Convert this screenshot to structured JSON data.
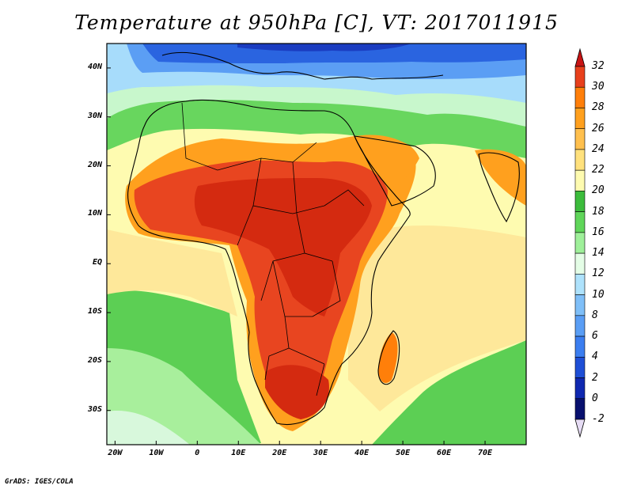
{
  "title": "Temperature at 950hPa [C], VT: 2017011915",
  "credit": "GrADS: IGES/COLA",
  "map": {
    "projection": "latlon",
    "lon_range": [
      -22,
      80
    ],
    "lat_range": [
      -37,
      45
    ],
    "lon_ticks": [
      {
        "lon": -20,
        "label": "20W"
      },
      {
        "lon": -10,
        "label": "10W"
      },
      {
        "lon": 0,
        "label": "0"
      },
      {
        "lon": 10,
        "label": "10E"
      },
      {
        "lon": 20,
        "label": "20E"
      },
      {
        "lon": 30,
        "label": "30E"
      },
      {
        "lon": 40,
        "label": "40E"
      },
      {
        "lon": 50,
        "label": "50E"
      },
      {
        "lon": 60,
        "label": "60E"
      },
      {
        "lon": 70,
        "label": "70E"
      }
    ],
    "lat_ticks": [
      {
        "lat": 40,
        "label": "40N"
      },
      {
        "lat": 30,
        "label": "30N"
      },
      {
        "lat": 20,
        "label": "20N"
      },
      {
        "lat": 10,
        "label": "10N"
      },
      {
        "lat": 0,
        "label": "EQ"
      },
      {
        "lat": -10,
        "label": "10S"
      },
      {
        "lat": -20,
        "label": "20S"
      },
      {
        "lat": -30,
        "label": "30S"
      }
    ]
  },
  "colorbar": {
    "levels": [
      {
        "label": "32",
        "color": "#e8401c"
      },
      {
        "label": "30",
        "color": "#e8401c"
      },
      {
        "label": "28",
        "color": "#ff7f0a"
      },
      {
        "label": "26",
        "color": "#ffa01e"
      },
      {
        "label": "24",
        "color": "#ffc04e"
      },
      {
        "label": "22",
        "color": "#ffe17d"
      },
      {
        "label": "20",
        "color": "#fefbb0"
      },
      {
        "label": "18",
        "color": "#3cbc3c"
      },
      {
        "label": "16",
        "color": "#60d65a"
      },
      {
        "label": "14",
        "color": "#9ff09a"
      },
      {
        "label": "12",
        "color": "#e4fde6"
      },
      {
        "label": "10",
        "color": "#aee2fc"
      },
      {
        "label": "8",
        "color": "#7fbff8"
      },
      {
        "label": "6",
        "color": "#5a9ef5"
      },
      {
        "label": "4",
        "color": "#3b7ef0"
      },
      {
        "label": "2",
        "color": "#1e4fd6"
      },
      {
        "label": "0",
        "color": "#0f28b0"
      },
      {
        "label": "-2",
        "color": "#08106e"
      }
    ],
    "top_color": "#c81414",
    "bottom_color": "#e6dcf4"
  },
  "colors": {
    "ocean_warm": "#fee89a",
    "ocean_mid": "#fefbb0",
    "ocean_green": "#5ccf54",
    "ocean_lightgreen": "#a8ef9c",
    "ocean_pale": "#d8f8dc",
    "ocean_blue": "#a7dcfb",
    "med_blue": "#5b9ef4",
    "europe_dark": "#2a64e0",
    "north_navy": "#1a3cc0",
    "sahara_green": "#68d65e",
    "sahara_pale": "#c8f7cc",
    "africa_orange": "#ffa01e",
    "africa_orange2": "#ff7f0a",
    "africa_red": "#e84520",
    "africa_deep": "#d42a10"
  }
}
